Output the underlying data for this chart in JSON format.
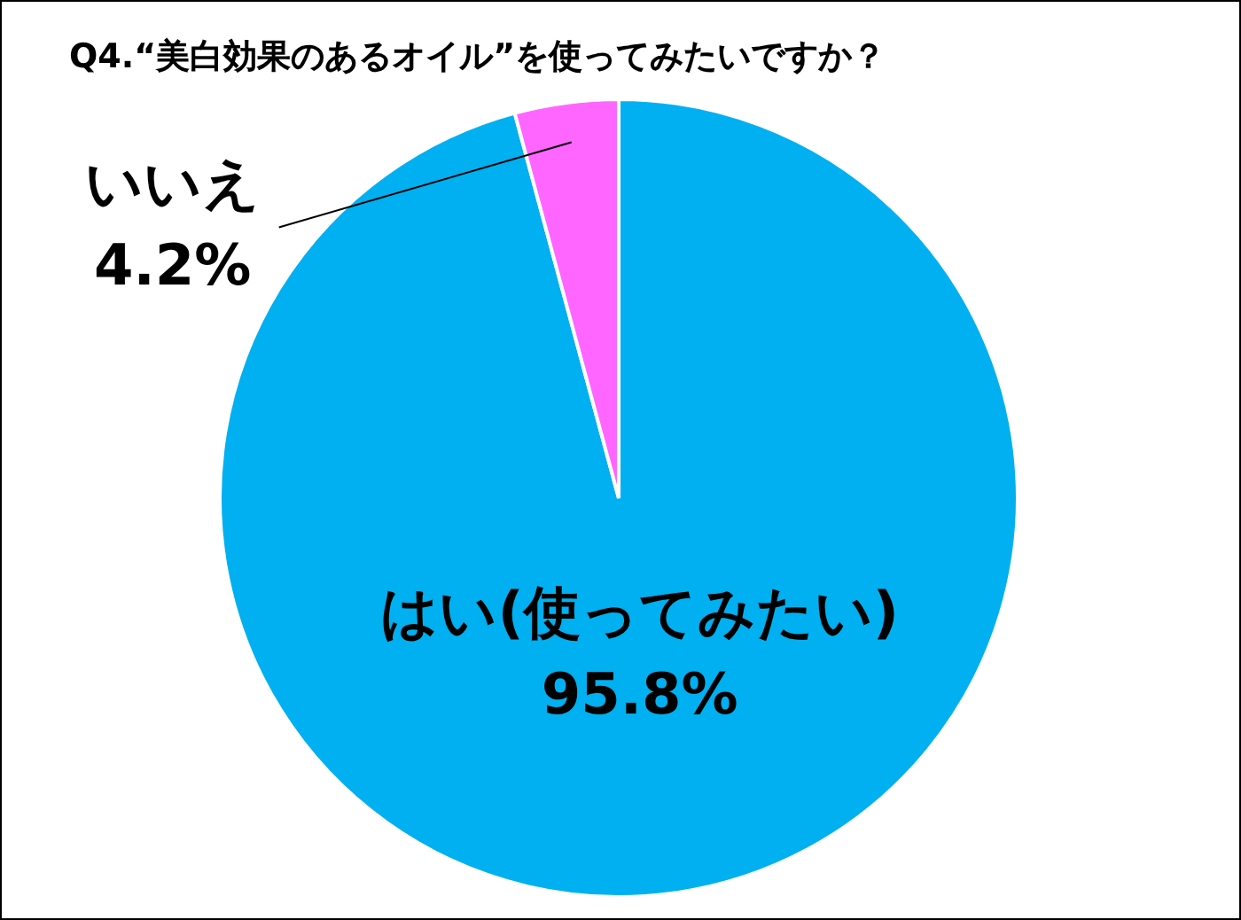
{
  "chart_data": {
    "type": "pie",
    "title": "Q4.“美白効果のあるオイル”を使ってみたいですか？",
    "categories": [
      "はい(使ってみたい)",
      "いいえ"
    ],
    "values": [
      95.8,
      4.2
    ],
    "colors": [
      "#00b0f0",
      "#ff66ff"
    ],
    "value_labels": [
      "95.8%",
      "4.2%"
    ],
    "legend": false
  }
}
